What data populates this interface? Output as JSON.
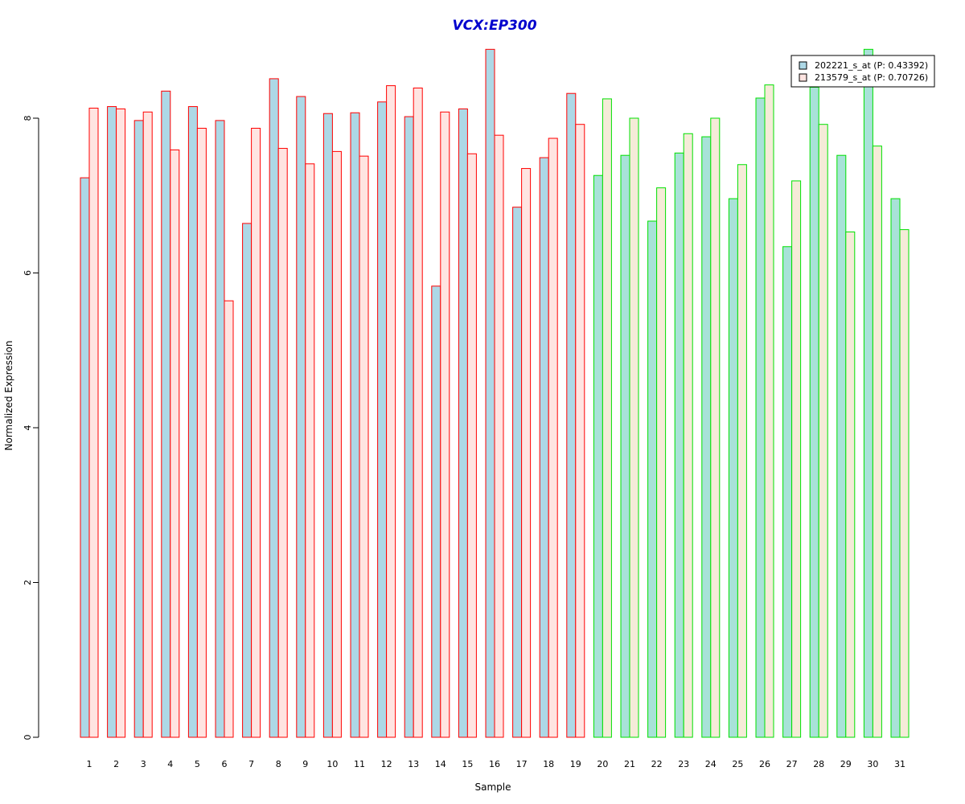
{
  "chart_data": {
    "type": "bar",
    "title": "VCX:EP300",
    "xlabel": "Sample",
    "ylabel": "Normalized Expression",
    "ylim": [
      0,
      8.9
    ],
    "yticks": [
      "0",
      "2",
      "4",
      "6",
      "8"
    ],
    "categories": [
      "1",
      "2",
      "3",
      "4",
      "5",
      "6",
      "7",
      "8",
      "9",
      "10",
      "11",
      "12",
      "13",
      "14",
      "15",
      "16",
      "17",
      "18",
      "19",
      "20",
      "21",
      "22",
      "23",
      "24",
      "25",
      "26",
      "27",
      "28",
      "29",
      "30",
      "31"
    ],
    "series": [
      {
        "name": "202221_s_at (P: 0.43392)",
        "values": [
          7.23,
          8.15,
          7.97,
          8.35,
          8.15,
          7.97,
          6.64,
          8.51,
          8.28,
          8.06,
          8.07,
          8.21,
          8.02,
          5.83,
          8.12,
          8.89,
          6.85,
          7.49,
          8.32,
          7.26,
          7.52,
          6.67,
          7.55,
          7.76,
          6.96,
          8.26,
          6.34,
          8.4,
          7.52,
          8.89,
          6.96
        ]
      },
      {
        "name": "213579_s_at (P: 0.70726)",
        "values": [
          8.13,
          8.12,
          8.08,
          7.59,
          7.87,
          5.64,
          7.87,
          7.61,
          7.41,
          7.57,
          7.51,
          8.42,
          8.39,
          8.08,
          7.54,
          7.78,
          7.35,
          7.74,
          7.92,
          8.25,
          8.0,
          7.1,
          7.8,
          8.0,
          7.4,
          8.43,
          7.19,
          7.92,
          6.53,
          7.64,
          6.56
        ]
      }
    ],
    "group_split": 19,
    "colors": {
      "group1_series1_fill": "#add8e6",
      "group1_series2_fill": "#ffe4e1",
      "group1_border": "#ff0000",
      "group2_series1_fill": "#a8e2d8",
      "group2_series2_fill": "#f5ebd8",
      "group2_border": "#00e000",
      "title": "#0000cd"
    },
    "legend_position": "top-right",
    "grid": false
  }
}
